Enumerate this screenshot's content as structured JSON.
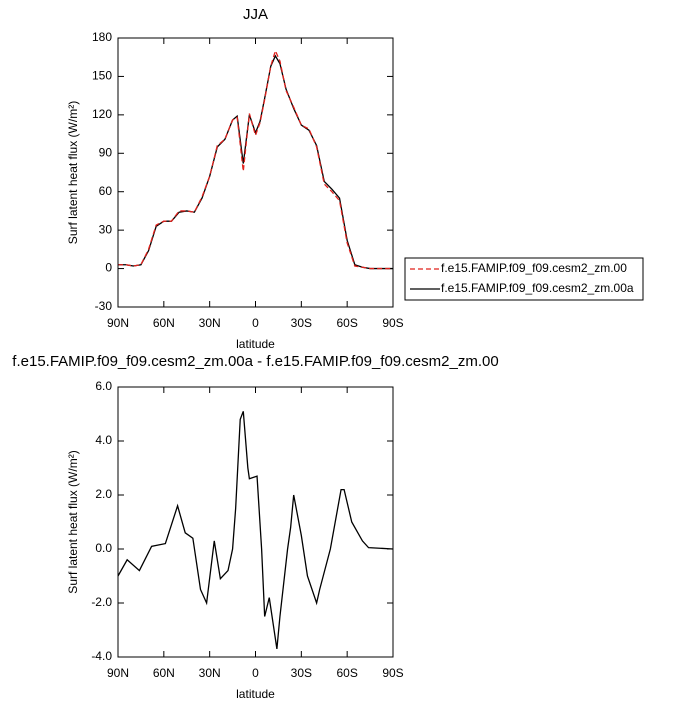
{
  "chart_data": [
    {
      "type": "line",
      "title": "JJA",
      "xlabel": "latitude",
      "ylabel": "Surf latent heat flux (W/m²)",
      "x": [
        90,
        85,
        80,
        75,
        70,
        65,
        60,
        55,
        50,
        45,
        40,
        35,
        30,
        25,
        20,
        15,
        12,
        8,
        4,
        0,
        -3,
        -6,
        -10,
        -13,
        -16,
        -20,
        -25,
        -30,
        -35,
        -40,
        -45,
        -50,
        -55,
        -60,
        -65,
        -70,
        -75,
        -80,
        -85,
        -90
      ],
      "series": [
        {
          "name": "f.e15.FAMIP.f09_f09.cesm2_zm.00",
          "color": "#e0201b",
          "linestyle": "dashed",
          "values": [
            3,
            3,
            2,
            3,
            15,
            34,
            37,
            37,
            45,
            45,
            44,
            56,
            72,
            96,
            101,
            116,
            118,
            76,
            121,
            104,
            114,
            132,
            158,
            170,
            162,
            139,
            126,
            112,
            109,
            95,
            66,
            60,
            53,
            20,
            2,
            1,
            0,
            0,
            0,
            0
          ]
        },
        {
          "name": "f.e15.FAMIP.f09_f09.cesm2_zm.00a",
          "color": "#000000",
          "linestyle": "solid",
          "values": [
            3,
            3,
            2,
            3,
            14,
            33,
            37,
            37,
            44,
            45,
            44,
            55,
            72,
            95,
            101,
            116,
            119,
            82,
            120,
            106,
            115,
            133,
            158,
            166,
            160,
            140,
            125,
            112,
            108,
            96,
            68,
            62,
            55,
            22,
            3,
            1,
            0,
            0,
            0,
            0
          ]
        }
      ],
      "xlim": [
        90,
        -90
      ],
      "xticks": [
        {
          "value": 90,
          "label": "90N"
        },
        {
          "value": 60,
          "label": "60N"
        },
        {
          "value": 30,
          "label": "30N"
        },
        0,
        {
          "value": -30,
          "label": "30S"
        },
        {
          "value": -60,
          "label": "60S"
        },
        {
          "value": -90,
          "label": "90S"
        }
      ],
      "ylim": [
        -30,
        180
      ],
      "yticks": [
        -30,
        0,
        30,
        60,
        90,
        120,
        150,
        180
      ],
      "legend": "right"
    },
    {
      "type": "line",
      "title": "f.e15.FAMIP.f09_f09.cesm2_zm.00a - f.e15.FAMIP.f09_f09.cesm2_zm.00",
      "xlabel": "latitude",
      "ylabel": "Surf latent heat flux (W/m²)",
      "x": [
        90,
        84,
        76,
        68,
        59,
        51,
        46,
        41,
        36,
        32,
        27,
        23,
        18,
        15,
        13,
        10,
        8,
        5,
        4,
        -1,
        -4,
        -6,
        -9,
        -14,
        -16,
        -21,
        -23,
        -25,
        -30,
        -34,
        -40,
        -42,
        -49,
        -56,
        -58,
        -63,
        -70,
        -74,
        -90
      ],
      "series": [
        {
          "color": "#000000",
          "linestyle": "solid",
          "values": [
            -1.0,
            -0.4,
            -0.8,
            0.1,
            0.2,
            1.6,
            0.6,
            0.4,
            -1.5,
            -2.0,
            0.3,
            -1.1,
            -0.8,
            0.0,
            1.5,
            4.8,
            5.1,
            3.0,
            2.6,
            2.7,
            0.0,
            -2.5,
            -1.8,
            -3.7,
            -2.5,
            0.0,
            0.8,
            2.0,
            0.5,
            -1.0,
            -2.0,
            -1.5,
            0.0,
            2.2,
            2.2,
            1.0,
            0.3,
            0.05,
            0.0
          ]
        }
      ],
      "xlim": [
        90,
        -90
      ],
      "xticks": [
        {
          "value": 90,
          "label": "90N"
        },
        {
          "value": 60,
          "label": "60N"
        },
        {
          "value": 30,
          "label": "30N"
        },
        0,
        {
          "value": -30,
          "label": "30S"
        },
        {
          "value": -60,
          "label": "60S"
        },
        {
          "value": -90,
          "label": "90S"
        }
      ],
      "ylim": [
        -4,
        6
      ],
      "yticks": [
        {
          "value": -4,
          "label": "-4.0"
        },
        {
          "value": -2,
          "label": "-2.0"
        },
        {
          "value": 0,
          "label": "0.0"
        },
        {
          "value": 2,
          "label": "2.0"
        },
        {
          "value": 4,
          "label": "4.0"
        },
        {
          "value": 6,
          "label": "6.0"
        }
      ]
    }
  ]
}
